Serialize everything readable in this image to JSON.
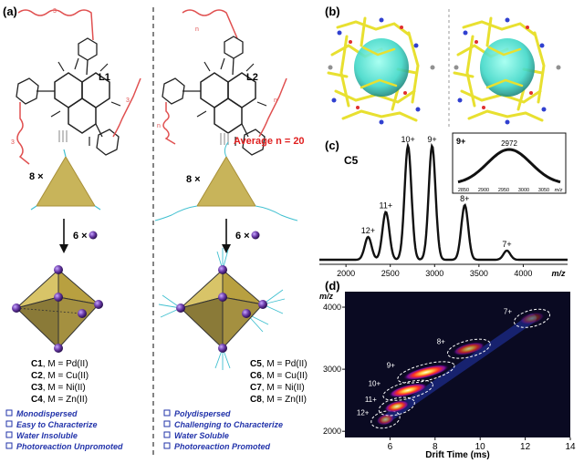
{
  "panels": {
    "a": "(a)",
    "b": "(b)",
    "c": "(c)",
    "d": "(d)"
  },
  "left": {
    "ligand": "L1",
    "sub_n": "3",
    "mult_triangle": "8 ×",
    "mult_metal": "6 ×",
    "complexes": [
      {
        "id": "C1",
        "metal": ", M = Pd(II)"
      },
      {
        "id": "C2",
        "metal": ", M = Cu(II)"
      },
      {
        "id": "C3",
        "metal": ", M = Ni(II)"
      },
      {
        "id": "C4",
        "metal": ", M = Zn(II)"
      }
    ],
    "properties": [
      "Monodispersed",
      "Easy to Characterize",
      "Water Insoluble",
      "Photoreaction Unpromoted"
    ]
  },
  "right": {
    "ligand": "L2",
    "sub_n": "n",
    "average": "Average n = 20",
    "mult_triangle": "8 ×",
    "mult_metal": "6 ×",
    "complexes": [
      {
        "id": "C5",
        "metal": ", M = Pd(II)"
      },
      {
        "id": "C6",
        "metal": ", M = Cu(II)"
      },
      {
        "id": "C7",
        "metal": ", M = Ni(II)"
      },
      {
        "id": "C8",
        "metal": ", M = Zn(II)"
      }
    ],
    "properties": [
      "Polydispersed",
      "Challenging to Characterize",
      "Water Soluble",
      "Photoreaction Promoted"
    ]
  },
  "colors": {
    "pyramid": "#c8b45a",
    "metal": "#6a3aa8",
    "chain": "#e05050",
    "prop_text": "#2233aa",
    "average": "#e02020",
    "cage": "#e8e030",
    "cavity": "#40d8c8"
  },
  "chart_data": [
    {
      "type": "line",
      "title": "C5",
      "xlabel": "m/z",
      "xlim": [
        1700,
        4500
      ],
      "x_ticks": [
        "2000",
        "2500",
        "3000",
        "3500",
        "4000"
      ],
      "peaks": [
        {
          "label": "12+",
          "x": 2250,
          "y": 0.2
        },
        {
          "label": "11+",
          "x": 2450,
          "y": 0.42
        },
        {
          "label": "10+",
          "x": 2700,
          "y": 1.0
        },
        {
          "label": "9+",
          "x": 2972,
          "y": 1.0
        },
        {
          "label": "8+",
          "x": 3340,
          "y": 0.48
        },
        {
          "label": "7+",
          "x": 3815,
          "y": 0.08
        }
      ],
      "inset": {
        "label": "9+",
        "peak_label": "2972",
        "xlabel": "m/z",
        "x_ticks": [
          "2850",
          "2900",
          "2950",
          "3000",
          "3050"
        ]
      }
    },
    {
      "type": "heatmap",
      "xlabel": "Drift Time (ms)",
      "ylabel": "m/z",
      "xlim": [
        4,
        14
      ],
      "ylim": [
        1900,
        4250
      ],
      "x_ticks": [
        "6",
        "8",
        "10",
        "12",
        "14"
      ],
      "y_ticks": [
        "2000",
        "3000",
        "4000"
      ],
      "blobs": [
        {
          "label": "12+",
          "dt": 5.8,
          "mz": 2190
        },
        {
          "label": "11+",
          "dt": 6.3,
          "mz": 2400
        },
        {
          "label": "10+",
          "dt": 6.8,
          "mz": 2660
        },
        {
          "label": "9+",
          "dt": 7.6,
          "mz": 2950
        },
        {
          "label": "8+",
          "dt": 9.5,
          "mz": 3330
        },
        {
          "label": "7+",
          "dt": 12.3,
          "mz": 3820
        }
      ]
    }
  ]
}
